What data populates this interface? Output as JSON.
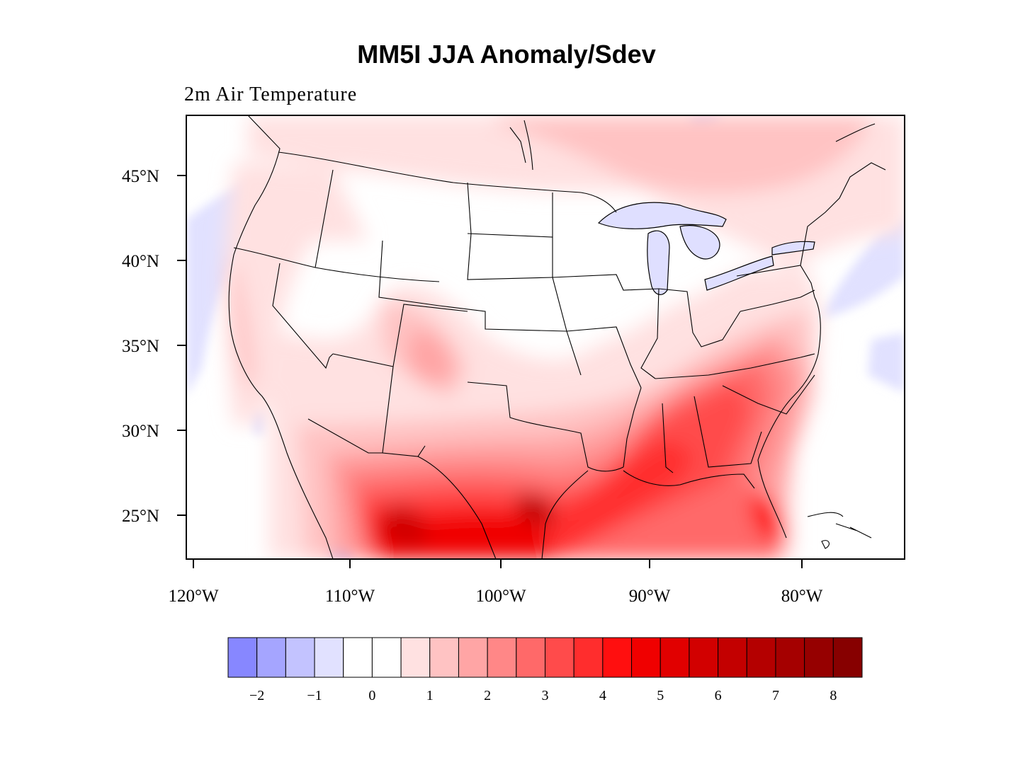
{
  "title": "MM5I JJA Anomaly/Sdev",
  "subtitle": "2m Air Temperature",
  "lat_labels": [
    "45°N",
    "40°N",
    "35°N",
    "30°N",
    "25°N"
  ],
  "lon_labels": [
    "120°W",
    "110°W",
    "100°W",
    "90°W",
    "80°W"
  ],
  "colorbar": {
    "colors": [
      "#8787ff",
      "#a5a5ff",
      "#c3c3ff",
      "#e1e1ff",
      "#ffffff",
      "#ffffff",
      "#ffe1e1",
      "#ffc3c3",
      "#ffa5a5",
      "#ff8787",
      "#ff6969",
      "#ff4b4b",
      "#ff2d2d",
      "#ff0f0f",
      "#f00000",
      "#e10000",
      "#d20000",
      "#c30000",
      "#b40000",
      "#a50000",
      "#960000",
      "#870000"
    ],
    "labels": [
      "−2",
      "−1",
      "0",
      "1",
      "2",
      "3",
      "4",
      "5",
      "6",
      "7",
      "8"
    ]
  },
  "palette": {
    "frame": "#000000",
    "border": "#000000",
    "lake": "#dfdfff"
  }
}
